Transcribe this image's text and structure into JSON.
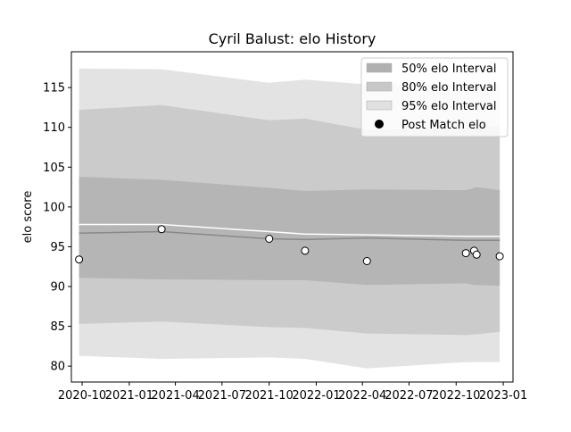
{
  "chart_data": {
    "type": "line",
    "title": "Cyril Balust: elo History",
    "xlabel": "",
    "ylabel": "elo score",
    "ylim": [
      78,
      119.5
    ],
    "xlim": [
      "2020-09-10",
      "2023-01-20"
    ],
    "x_ticks": [
      "2020-10",
      "2021-01",
      "2021-04",
      "2021-07",
      "2021-10",
      "2022-01",
      "2022-04",
      "2022-07",
      "2022-10",
      "2023-01"
    ],
    "y_ticks": [
      80,
      85,
      90,
      95,
      100,
      105,
      110,
      115
    ],
    "grid": false,
    "legend_position": "top-right",
    "x": [
      "2020-09-25",
      "2021-03-05",
      "2021-10-01",
      "2021-12-10",
      "2022-04-10",
      "2022-10-20",
      "2022-11-05",
      "2022-11-10",
      "2022-12-25"
    ],
    "bands": [
      {
        "name": "95% elo Interval",
        "color": "#e3e3e3",
        "lower": [
          81.3,
          80.9,
          81.1,
          80.9,
          79.7,
          80.5,
          80.5,
          80.5,
          80.5
        ],
        "upper": [
          117.4,
          117.3,
          115.6,
          116.0,
          115.4,
          115.3,
          115.4,
          115.4,
          115.5
        ]
      },
      {
        "name": "80% elo Interval",
        "color": "#cbcbcb",
        "lower": [
          85.3,
          85.6,
          84.9,
          84.8,
          84.1,
          83.9,
          84.0,
          84.0,
          84.3
        ],
        "upper": [
          112.2,
          112.8,
          110.9,
          111.1,
          109.7,
          109.9,
          110.0,
          110.0,
          110.2
        ]
      },
      {
        "name": "50% elo Interval",
        "color": "#b5b5b5",
        "lower": [
          91.1,
          90.9,
          90.8,
          90.8,
          90.2,
          90.4,
          90.2,
          90.2,
          90.1
        ],
        "upper": [
          103.8,
          103.4,
          102.4,
          102.0,
          102.2,
          102.1,
          102.4,
          102.5,
          102.1
        ]
      }
    ],
    "series": [
      {
        "values": [
          97.8,
          97.8,
          96.9,
          96.6,
          96.5,
          96.3,
          96.3,
          96.3,
          96.3
        ],
        "color": "#ffffff"
      },
      {
        "values": [
          96.7,
          96.9,
          96.0,
          95.9,
          96.1,
          95.8,
          95.8,
          95.8,
          95.8
        ],
        "color": "#888888"
      }
    ],
    "points": {
      "name": "Post Match elo",
      "x": [
        "2020-09-25",
        "2021-03-05",
        "2021-10-01",
        "2021-12-10",
        "2022-04-10",
        "2022-10-20",
        "2022-11-05",
        "2022-11-10",
        "2022-12-25"
      ],
      "values": [
        93.4,
        97.2,
        96.0,
        94.5,
        93.2,
        94.2,
        94.5,
        94.0,
        93.8
      ]
    },
    "legend": [
      {
        "label": "50% elo Interval",
        "color": "#b0b0b0",
        "kind": "patch"
      },
      {
        "label": "80% elo Interval",
        "color": "#c8c8c8",
        "kind": "patch"
      },
      {
        "label": "95% elo Interval",
        "color": "#e0e0e0",
        "kind": "patch"
      },
      {
        "label": "Post Match elo",
        "color": "#000000",
        "kind": "marker"
      }
    ]
  }
}
